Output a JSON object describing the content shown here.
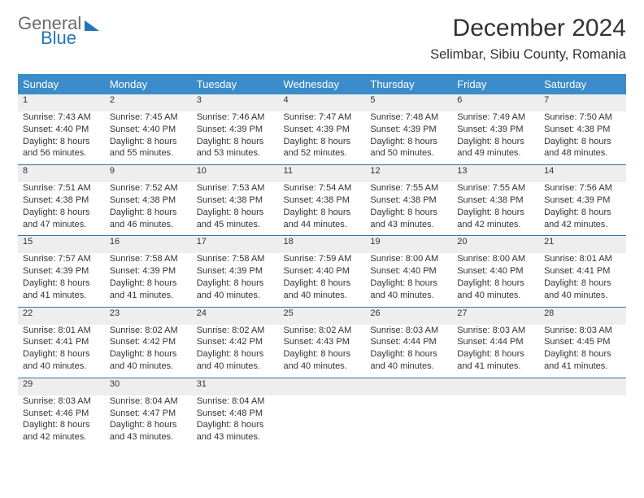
{
  "logo": {
    "word1": "General",
    "word2": "Blue"
  },
  "title": "December 2024",
  "location": "Selimbar, Sibiu County, Romania",
  "colors": {
    "header_bg": "#3b8ccb",
    "header_text": "#ffffff",
    "row_divider": "#3b6f9a",
    "daynum_bg": "#eeeeee",
    "logo_accent": "#2176b6",
    "logo_grey": "#6b6b6b",
    "body_text": "#333333"
  },
  "daysOfWeek": [
    "Sunday",
    "Monday",
    "Tuesday",
    "Wednesday",
    "Thursday",
    "Friday",
    "Saturday"
  ],
  "weeks": [
    [
      {
        "n": "1",
        "sr": "7:43 AM",
        "ss": "4:40 PM",
        "dl": "8 hours and 56 minutes."
      },
      {
        "n": "2",
        "sr": "7:45 AM",
        "ss": "4:40 PM",
        "dl": "8 hours and 55 minutes."
      },
      {
        "n": "3",
        "sr": "7:46 AM",
        "ss": "4:39 PM",
        "dl": "8 hours and 53 minutes."
      },
      {
        "n": "4",
        "sr": "7:47 AM",
        "ss": "4:39 PM",
        "dl": "8 hours and 52 minutes."
      },
      {
        "n": "5",
        "sr": "7:48 AM",
        "ss": "4:39 PM",
        "dl": "8 hours and 50 minutes."
      },
      {
        "n": "6",
        "sr": "7:49 AM",
        "ss": "4:39 PM",
        "dl": "8 hours and 49 minutes."
      },
      {
        "n": "7",
        "sr": "7:50 AM",
        "ss": "4:38 PM",
        "dl": "8 hours and 48 minutes."
      }
    ],
    [
      {
        "n": "8",
        "sr": "7:51 AM",
        "ss": "4:38 PM",
        "dl": "8 hours and 47 minutes."
      },
      {
        "n": "9",
        "sr": "7:52 AM",
        "ss": "4:38 PM",
        "dl": "8 hours and 46 minutes."
      },
      {
        "n": "10",
        "sr": "7:53 AM",
        "ss": "4:38 PM",
        "dl": "8 hours and 45 minutes."
      },
      {
        "n": "11",
        "sr": "7:54 AM",
        "ss": "4:38 PM",
        "dl": "8 hours and 44 minutes."
      },
      {
        "n": "12",
        "sr": "7:55 AM",
        "ss": "4:38 PM",
        "dl": "8 hours and 43 minutes."
      },
      {
        "n": "13",
        "sr": "7:55 AM",
        "ss": "4:38 PM",
        "dl": "8 hours and 42 minutes."
      },
      {
        "n": "14",
        "sr": "7:56 AM",
        "ss": "4:39 PM",
        "dl": "8 hours and 42 minutes."
      }
    ],
    [
      {
        "n": "15",
        "sr": "7:57 AM",
        "ss": "4:39 PM",
        "dl": "8 hours and 41 minutes."
      },
      {
        "n": "16",
        "sr": "7:58 AM",
        "ss": "4:39 PM",
        "dl": "8 hours and 41 minutes."
      },
      {
        "n": "17",
        "sr": "7:58 AM",
        "ss": "4:39 PM",
        "dl": "8 hours and 40 minutes."
      },
      {
        "n": "18",
        "sr": "7:59 AM",
        "ss": "4:40 PM",
        "dl": "8 hours and 40 minutes."
      },
      {
        "n": "19",
        "sr": "8:00 AM",
        "ss": "4:40 PM",
        "dl": "8 hours and 40 minutes."
      },
      {
        "n": "20",
        "sr": "8:00 AM",
        "ss": "4:40 PM",
        "dl": "8 hours and 40 minutes."
      },
      {
        "n": "21",
        "sr": "8:01 AM",
        "ss": "4:41 PM",
        "dl": "8 hours and 40 minutes."
      }
    ],
    [
      {
        "n": "22",
        "sr": "8:01 AM",
        "ss": "4:41 PM",
        "dl": "8 hours and 40 minutes."
      },
      {
        "n": "23",
        "sr": "8:02 AM",
        "ss": "4:42 PM",
        "dl": "8 hours and 40 minutes."
      },
      {
        "n": "24",
        "sr": "8:02 AM",
        "ss": "4:42 PM",
        "dl": "8 hours and 40 minutes."
      },
      {
        "n": "25",
        "sr": "8:02 AM",
        "ss": "4:43 PM",
        "dl": "8 hours and 40 minutes."
      },
      {
        "n": "26",
        "sr": "8:03 AM",
        "ss": "4:44 PM",
        "dl": "8 hours and 40 minutes."
      },
      {
        "n": "27",
        "sr": "8:03 AM",
        "ss": "4:44 PM",
        "dl": "8 hours and 41 minutes."
      },
      {
        "n": "28",
        "sr": "8:03 AM",
        "ss": "4:45 PM",
        "dl": "8 hours and 41 minutes."
      }
    ],
    [
      {
        "n": "29",
        "sr": "8:03 AM",
        "ss": "4:46 PM",
        "dl": "8 hours and 42 minutes."
      },
      {
        "n": "30",
        "sr": "8:04 AM",
        "ss": "4:47 PM",
        "dl": "8 hours and 43 minutes."
      },
      {
        "n": "31",
        "sr": "8:04 AM",
        "ss": "4:48 PM",
        "dl": "8 hours and 43 minutes."
      },
      null,
      null,
      null,
      null
    ]
  ],
  "labels": {
    "sunrise": "Sunrise:",
    "sunset": "Sunset:",
    "daylight": "Daylight:"
  }
}
